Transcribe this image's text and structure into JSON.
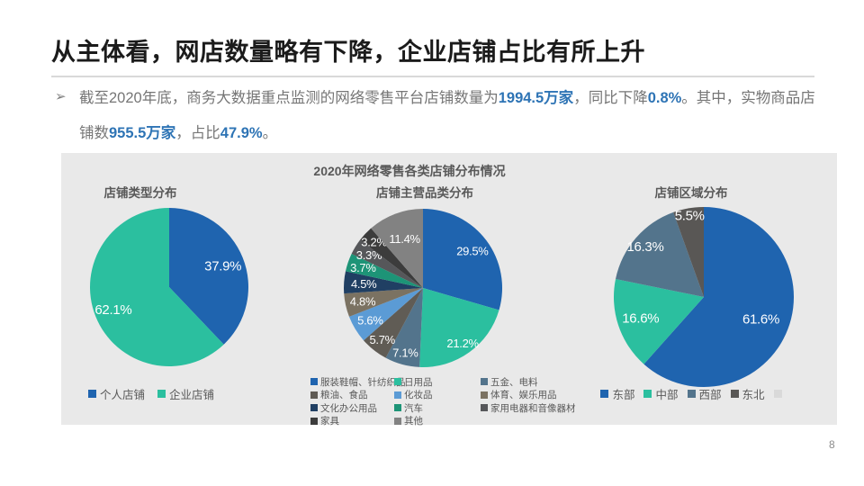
{
  "slide": {
    "title": "从主体看，网店数量略有下降，企业店铺占比有所上升",
    "page_number": "8",
    "bullet_marker": "➢",
    "bullet_segments": [
      {
        "text": "截至2020年底，商务大数据重点监测的网络零售平台店铺数量为",
        "emph": false
      },
      {
        "text": "1994.5万家",
        "emph": true
      },
      {
        "text": "，同比下降",
        "emph": false
      },
      {
        "text": "0.8%",
        "emph": true
      },
      {
        "text": "。其中，实物商品店铺数",
        "emph": false
      },
      {
        "text": "955.5万家",
        "emph": true
      },
      {
        "text": "，占比",
        "emph": false
      },
      {
        "text": "47.9%",
        "emph": true
      },
      {
        "text": "。",
        "emph": false
      }
    ],
    "accent_color": "#2e74b5",
    "body_text_color": "#767676"
  },
  "panel": {
    "title": "2020年网络零售各类店铺分布情况",
    "background": "#e9e9e9"
  },
  "chart_data": [
    {
      "type": "pie",
      "title": "店铺类型分布",
      "legend_position": "bottom",
      "series": [
        {
          "label": "个人店铺",
          "value": 37.9,
          "color": "#1f64af"
        },
        {
          "label": "企业店铺",
          "value": 62.1,
          "color": "#2bbf9f"
        }
      ],
      "label_radius": [
        0.73,
        0.76
      ]
    },
    {
      "type": "pie",
      "title": "店铺主营品类分布",
      "legend_position": "bottom-grid",
      "series": [
        {
          "label": "服装鞋帽、针纺织品",
          "value": 29.5,
          "color": "#1f64af"
        },
        {
          "label": "日用品",
          "value": 21.2,
          "color": "#2bbf9f"
        },
        {
          "label": "五金、电料",
          "value": 7.1,
          "color": "#53748c"
        },
        {
          "label": "粮油、食品",
          "value": 5.7,
          "color": "#605c55"
        },
        {
          "label": "化妆品",
          "value": 5.6,
          "color": "#5b9bd5"
        },
        {
          "label": "体育、娱乐用品",
          "value": 4.8,
          "color": "#7b7262"
        },
        {
          "label": "文化办公用品",
          "value": 4.5,
          "color": "#203f63"
        },
        {
          "label": "汽车",
          "value": 3.7,
          "color": "#1d9477"
        },
        {
          "label": "家用电器和音像器材",
          "value": 3.3,
          "color": "#56575a"
        },
        {
          "label": "家具",
          "value": 3.2,
          "color": "#3c3c3c"
        },
        {
          "label": "其他",
          "value": 11.4,
          "color": "#828282"
        }
      ],
      "label_radius": [
        0.78,
        0.86,
        0.85,
        0.83,
        0.78,
        0.78,
        0.75,
        0.8,
        0.8,
        0.85,
        0.66
      ]
    },
    {
      "type": "pie",
      "title": "店铺区域分布",
      "legend_position": "bottom",
      "series": [
        {
          "label": "东部",
          "value": 61.6,
          "color": "#1f64af"
        },
        {
          "label": "中部",
          "value": 16.6,
          "color": "#2bbf9f"
        },
        {
          "label": "西部",
          "value": 16.3,
          "color": "#53748c"
        },
        {
          "label": "东北",
          "value": 5.5,
          "color": "#595755"
        },
        {
          "label": "",
          "value": 0,
          "color": "#d9d9d9"
        }
      ],
      "label_radius": [
        0.68,
        0.74,
        0.86,
        0.92,
        0
      ]
    }
  ]
}
